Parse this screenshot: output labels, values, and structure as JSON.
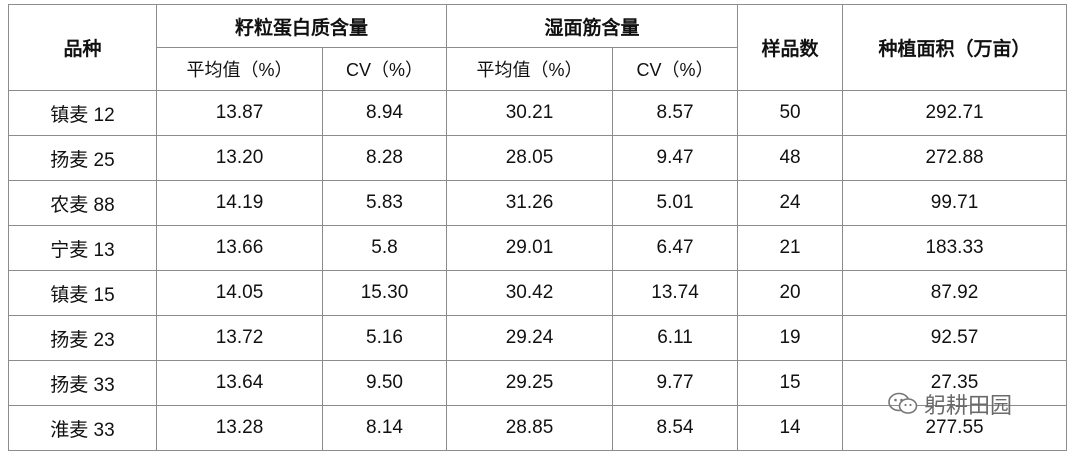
{
  "table": {
    "header": {
      "variety": "品种",
      "protein": "籽粒蛋白质含量",
      "gluten": "湿面筋含量",
      "samples": "样品数",
      "area": "种植面积（万亩）",
      "mean": "平均值（%）",
      "cv": "CV（%）"
    },
    "rows": [
      [
        "镇麦 12",
        "13.87",
        "8.94",
        "30.21",
        "8.57",
        "50",
        "292.71"
      ],
      [
        "扬麦 25",
        "13.20",
        "8.28",
        "28.05",
        "9.47",
        "48",
        "272.88"
      ],
      [
        "农麦 88",
        "14.19",
        "5.83",
        "31.26",
        "5.01",
        "24",
        "99.71"
      ],
      [
        "宁麦 13",
        "13.66",
        "5.8",
        "29.01",
        "6.47",
        "21",
        "183.33"
      ],
      [
        "镇麦 15",
        "14.05",
        "15.30",
        "30.42",
        "13.74",
        "20",
        "87.92"
      ],
      [
        "扬麦 23",
        "13.72",
        "5.16",
        "29.24",
        "6.11",
        "19",
        "92.57"
      ],
      [
        "扬麦 33",
        "13.64",
        "9.50",
        "29.25",
        "9.77",
        "15",
        "27.35"
      ],
      [
        "淮麦 33",
        "13.28",
        "8.14",
        "28.85",
        "8.54",
        "14",
        "277.55"
      ]
    ]
  },
  "watermark": "躬耕田园"
}
